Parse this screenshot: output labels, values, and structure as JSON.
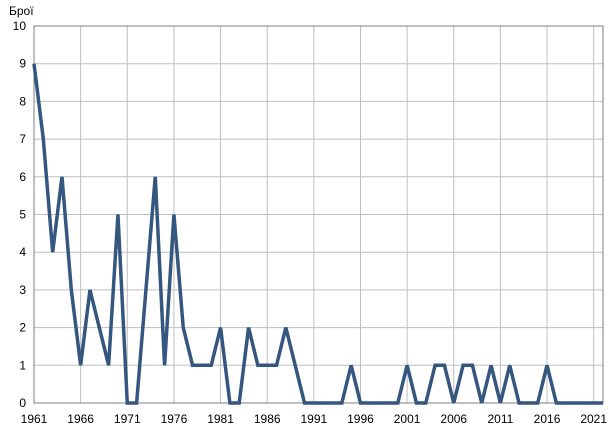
{
  "chart_data": {
    "type": "line",
    "title": "",
    "ylabel": "Брої",
    "xlabel": "",
    "ylim": [
      0,
      10
    ],
    "xlim": [
      1961,
      2022
    ],
    "grid": true,
    "line_color": "#34567f",
    "grid_color": "#bfbfbf",
    "x_ticks": [
      "1961",
      "1966",
      "1971",
      "1976",
      "1981",
      "1986",
      "1991",
      "1996",
      "2001",
      "2006",
      "2011",
      "2016",
      "2021"
    ],
    "y_ticks": [
      "0",
      "1",
      "2",
      "3",
      "4",
      "5",
      "6",
      "7",
      "8",
      "9",
      "10"
    ],
    "x": [
      1961,
      1962,
      1963,
      1964,
      1965,
      1966,
      1967,
      1968,
      1969,
      1970,
      1971,
      1972,
      1973,
      1974,
      1975,
      1976,
      1977,
      1978,
      1979,
      1980,
      1981,
      1982,
      1983,
      1984,
      1985,
      1986,
      1987,
      1988,
      1989,
      1990,
      1991,
      1992,
      1993,
      1994,
      1995,
      1996,
      1997,
      1998,
      1999,
      2000,
      2001,
      2002,
      2003,
      2004,
      2005,
      2006,
      2007,
      2008,
      2009,
      2010,
      2011,
      2012,
      2013,
      2014,
      2015,
      2016,
      2017,
      2018,
      2019,
      2020,
      2021,
      2022
    ],
    "values": [
      9,
      7,
      4,
      6,
      3,
      1,
      3,
      2,
      1,
      5,
      0,
      0,
      3,
      6,
      1,
      5,
      2,
      1,
      1,
      1,
      2,
      0,
      0,
      2,
      1,
      1,
      1,
      2,
      1,
      0,
      0,
      0,
      0,
      0,
      1,
      0,
      0,
      0,
      0,
      0,
      1,
      0,
      0,
      1,
      1,
      0,
      1,
      1,
      0,
      1,
      0,
      1,
      0,
      0,
      0,
      1,
      0,
      0,
      0,
      0,
      0,
      0
    ]
  }
}
